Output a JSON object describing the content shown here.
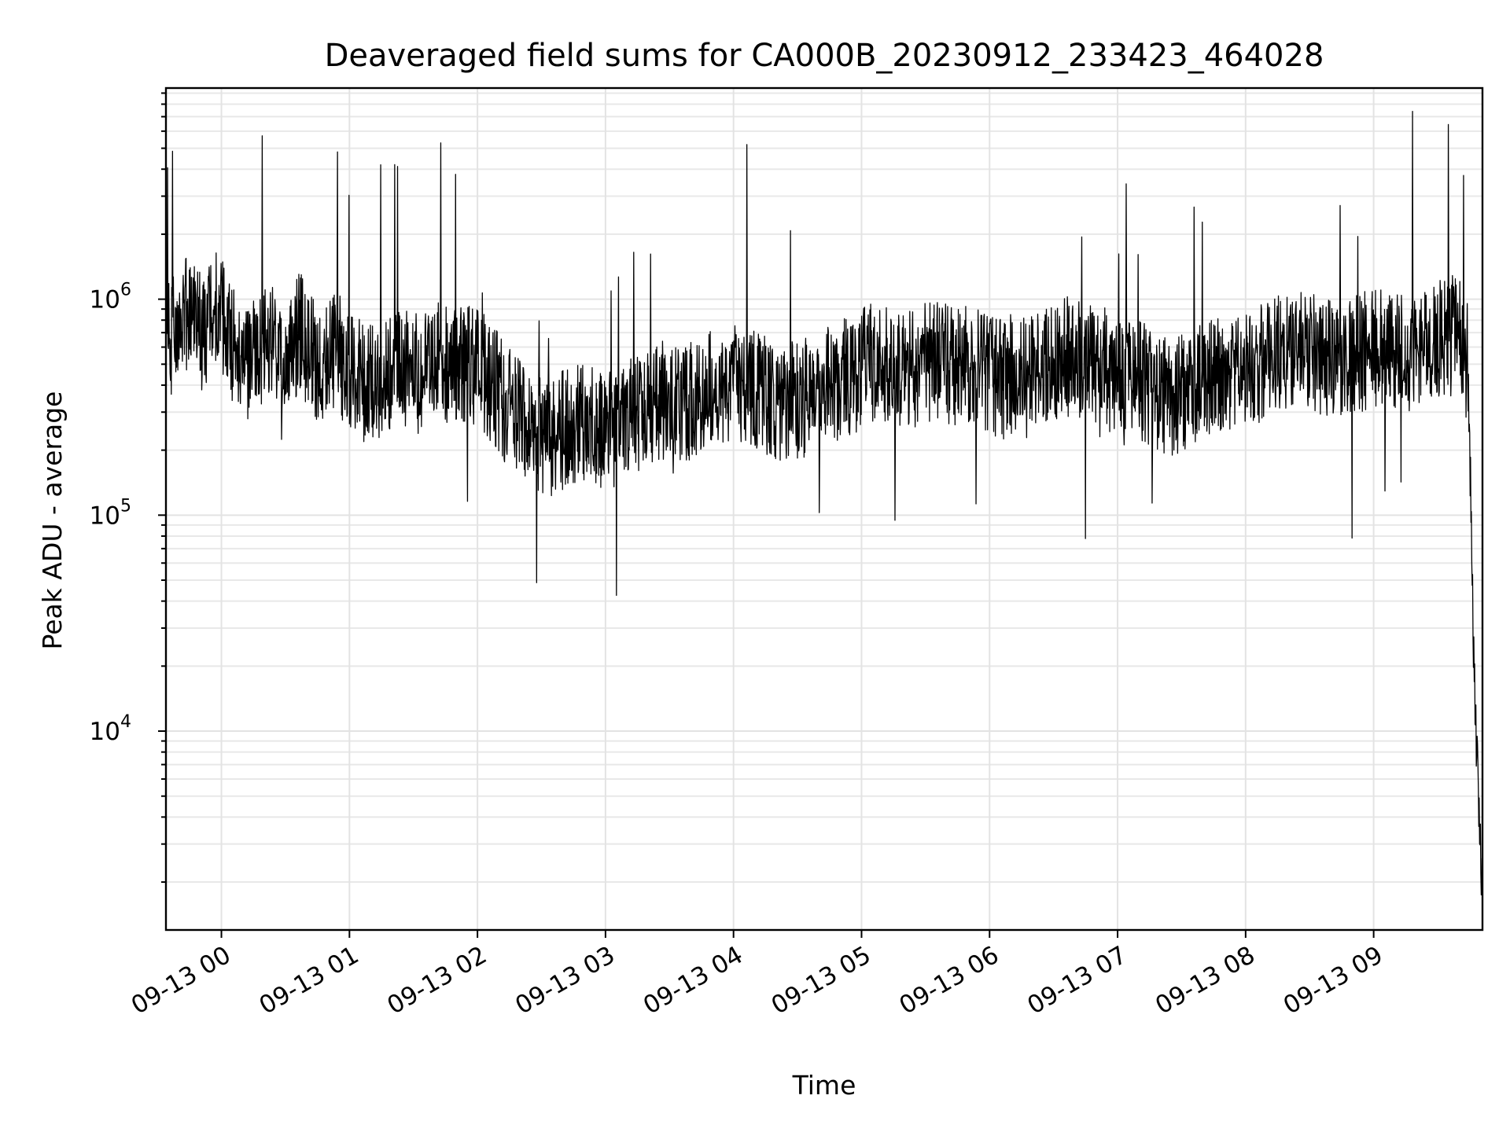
{
  "chart_data": {
    "type": "line",
    "title": "Deaveraged field sums for CA000B_20230912_233423_464028",
    "xlabel": "Time",
    "ylabel": "Peak ADU - average",
    "yscale": "log",
    "ylim": [
      1200,
      9500000
    ],
    "xlim": [
      "2023-09-12 23:34",
      "2023-09-13 09:51"
    ],
    "grid": true,
    "line_color": "#000000",
    "x_ticks": [
      "09-13 00",
      "09-13 01",
      "09-13 02",
      "09-13 03",
      "09-13 04",
      "09-13 05",
      "09-13 06",
      "09-13 07",
      "09-13 08",
      "09-13 09"
    ],
    "y_ticks": [
      {
        "base": "10",
        "exp": "4",
        "value": 10000
      },
      {
        "base": "10",
        "exp": "5",
        "value": 100000
      },
      {
        "base": "10",
        "exp": "6",
        "value": 1000000
      }
    ],
    "series": [
      {
        "x": [
          "2023-09-12 23:34",
          "2023-09-12 23:42",
          "2023-09-12 23:50",
          "2023-09-12 23:58",
          "2023-09-13 00:06",
          "2023-09-13 00:13",
          "2023-09-13 00:21",
          "2023-09-13 00:29",
          "2023-09-13 00:37",
          "2023-09-13 00:45",
          "2023-09-13 00:53",
          "2023-09-13 01:01",
          "2023-09-13 01:09",
          "2023-09-13 01:16",
          "2023-09-13 01:24",
          "2023-09-13 01:32",
          "2023-09-13 01:40",
          "2023-09-13 01:48",
          "2023-09-13 01:56",
          "2023-09-13 02:04",
          "2023-09-13 02:11",
          "2023-09-13 02:19",
          "2023-09-13 02:27",
          "2023-09-13 02:35",
          "2023-09-13 02:43",
          "2023-09-13 02:51",
          "2023-09-13 02:59",
          "2023-09-13 03:06",
          "2023-09-13 03:14",
          "2023-09-13 03:22",
          "2023-09-13 03:30",
          "2023-09-13 03:38",
          "2023-09-13 03:46",
          "2023-09-13 03:54",
          "2023-09-13 04:01",
          "2023-09-13 04:09",
          "2023-09-13 04:17",
          "2023-09-13 04:25",
          "2023-09-13 04:33",
          "2023-09-13 04:41",
          "2023-09-13 04:49",
          "2023-09-13 04:56",
          "2023-09-13 05:04",
          "2023-09-13 05:12",
          "2023-09-13 05:20",
          "2023-09-13 05:28",
          "2023-09-13 05:36",
          "2023-09-13 05:44",
          "2023-09-13 05:51",
          "2023-09-13 05:59",
          "2023-09-13 06:07",
          "2023-09-13 06:15",
          "2023-09-13 06:23",
          "2023-09-13 06:31",
          "2023-09-13 06:39",
          "2023-09-13 06:46",
          "2023-09-13 06:54",
          "2023-09-13 07:02",
          "2023-09-13 07:10",
          "2023-09-13 07:18",
          "2023-09-13 07:26",
          "2023-09-13 07:34",
          "2023-09-13 07:41",
          "2023-09-13 07:49",
          "2023-09-13 07:57",
          "2023-09-13 08:05",
          "2023-09-13 08:13",
          "2023-09-13 08:21",
          "2023-09-13 08:29",
          "2023-09-13 08:36",
          "2023-09-13 08:44",
          "2023-09-13 08:52",
          "2023-09-13 09:00",
          "2023-09-13 09:08",
          "2023-09-13 09:16",
          "2023-09-13 09:24",
          "2023-09-13 09:32",
          "2023-09-13 09:40",
          "2023-09-13 09:44",
          "2023-09-13 09:46",
          "2023-09-13 09:47",
          "2023-09-13 09:48",
          "2023-09-13 09:49",
          "2023-09-13 09:50",
          "2023-09-13 09:51"
        ],
        "y": [
          600000,
          850000,
          700000,
          900000,
          600000,
          500000,
          650000,
          550000,
          700000,
          500000,
          600000,
          450000,
          400000,
          420000,
          500000,
          450000,
          520000,
          480000,
          500000,
          450000,
          350000,
          280000,
          250000,
          230000,
          260000,
          280000,
          250000,
          240000,
          300000,
          320000,
          350000,
          330000,
          380000,
          400000,
          420000,
          380000,
          350000,
          330000,
          350000,
          400000,
          420000,
          450000,
          500000,
          480000,
          450000,
          500000,
          520000,
          480000,
          500000,
          450000,
          420000,
          500000,
          480000,
          520000,
          550000,
          500000,
          480000,
          400000,
          420000,
          380000,
          350000,
          380000,
          420000,
          450000,
          480000,
          500000,
          550000,
          600000,
          580000,
          550000,
          520000,
          550000,
          600000,
          580000,
          550000,
          600000,
          650000,
          700000,
          500000,
          80000,
          20000,
          9000,
          6000,
          3000,
          1800
        ]
      }
    ]
  }
}
